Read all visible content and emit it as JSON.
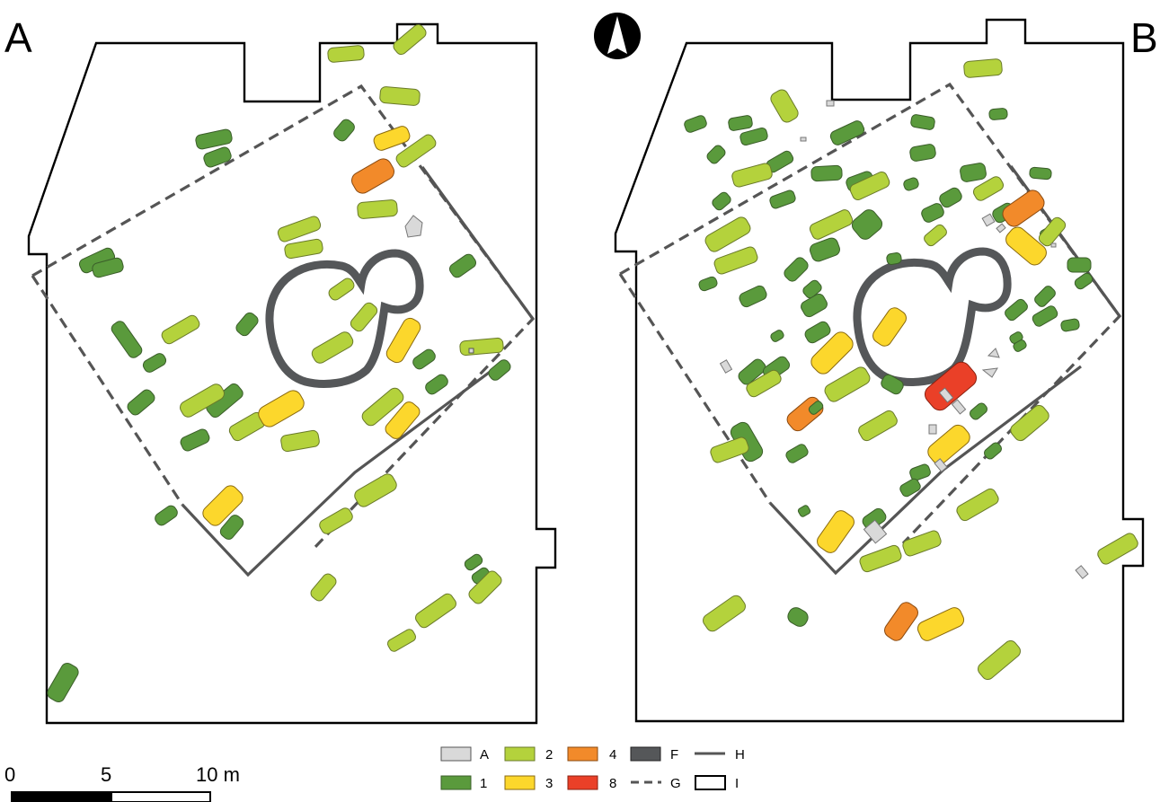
{
  "panels": {
    "a": {
      "label": "A"
    },
    "b": {
      "label": "B"
    }
  },
  "north_arrow": {
    "icon": "north-arrow-icon"
  },
  "scale_bar": {
    "ticks": [
      "0",
      "5",
      "10 m"
    ],
    "length_m": 10
  },
  "colors": {
    "A": "#d9d9d9",
    "1": "#5a9a3c",
    "2": "#b4d23c",
    "3": "#fcd72c",
    "4": "#f28a2a",
    "8": "#ea4028",
    "F": "#555759"
  },
  "legend": [
    {
      "key": "A",
      "label": "A",
      "symbol": "fill",
      "color": "#d9d9d9"
    },
    {
      "key": "1",
      "label": "1",
      "symbol": "fill",
      "color": "#5a9a3c"
    },
    {
      "key": "2",
      "label": "2",
      "symbol": "fill",
      "color": "#b4d23c"
    },
    {
      "key": "3",
      "label": "3",
      "symbol": "fill",
      "color": "#fcd72c"
    },
    {
      "key": "4",
      "label": "4",
      "symbol": "fill",
      "color": "#f28a2a"
    },
    {
      "key": "8",
      "label": "8",
      "symbol": "fill",
      "color": "#ea4028"
    },
    {
      "key": "F",
      "label": "F",
      "symbol": "fill",
      "color": "#555759"
    },
    {
      "key": "G",
      "label": "G",
      "symbol": "dashed-line"
    },
    {
      "key": "H",
      "label": "H",
      "symbol": "solid-line"
    },
    {
      "key": "I",
      "label": "I",
      "symbol": "outline-box"
    }
  ]
}
